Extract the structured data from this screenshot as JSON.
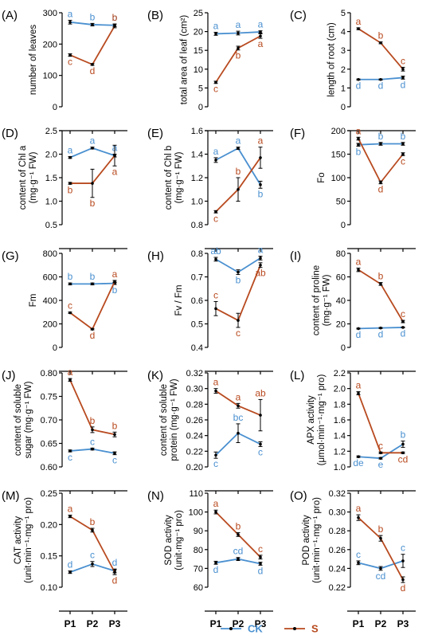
{
  "colors": {
    "CK": "#4a90d0",
    "S": "#b84a1f"
  },
  "x_categories": [
    "P1",
    "P2",
    "P3"
  ],
  "legend": [
    {
      "name": "CK",
      "color": "#4a90d0"
    },
    {
      "name": "S",
      "color": "#b84a1f"
    }
  ],
  "chart_data": [
    {
      "type": "line",
      "title": "(A)",
      "ylabel": [
        "number of leaves"
      ],
      "ylim": [
        0,
        300
      ],
      "yticks": [
        "0",
        "100",
        "200",
        "300"
      ],
      "categories": [
        "P1",
        "P2",
        "P3"
      ],
      "series": [
        {
          "name": "CK",
          "values": [
            270,
            262,
            260
          ],
          "err": [
            6,
            4,
            4
          ],
          "letters": [
            "a",
            "b",
            "b"
          ]
        },
        {
          "name": "S",
          "values": [
            165,
            135,
            258
          ],
          "err": [
            4,
            3,
            6
          ],
          "letters": [
            "c",
            "d",
            "b"
          ]
        }
      ]
    },
    {
      "type": "line",
      "title": "(B)",
      "ylabel": [
        "total area of leaf (cm²)"
      ],
      "ylim": [
        0,
        25
      ],
      "yticks": [
        "0",
        "5",
        "10",
        "15",
        "20",
        "25"
      ],
      "categories": [
        "P1",
        "P2",
        "P3"
      ],
      "series": [
        {
          "name": "CK",
          "values": [
            19.4,
            19.6,
            19.9
          ],
          "err": [
            0.4,
            0.5,
            0.3
          ],
          "letters": [
            "a",
            "a",
            "a"
          ]
        },
        {
          "name": "S",
          "values": [
            6.5,
            15.6,
            18.8
          ],
          "err": [
            0.3,
            0.5,
            0.6
          ],
          "letters": [
            "c",
            "b",
            "a"
          ]
        }
      ]
    },
    {
      "type": "line",
      "title": "(C)",
      "ylabel": [
        "length of root (cm)"
      ],
      "ylim": [
        0,
        5
      ],
      "yticks": [
        "0",
        "1",
        "2",
        "3",
        "4",
        "5"
      ],
      "categories": [
        "P1",
        "P2",
        "P3"
      ],
      "series": [
        {
          "name": "CK",
          "values": [
            1.45,
            1.45,
            1.55
          ],
          "err": [
            0.03,
            0.03,
            0.08
          ],
          "letters": [
            "d",
            "d",
            "d"
          ]
        },
        {
          "name": "S",
          "values": [
            4.15,
            3.4,
            2.0
          ],
          "err": [
            0.05,
            0.05,
            0.1
          ],
          "letters": [
            "a",
            "b",
            "c"
          ]
        }
      ]
    },
    {
      "type": "line",
      "title": "(D)",
      "ylabel": [
        "content of Chl a",
        "(mg·g⁻¹ FW)"
      ],
      "ylim": [
        0.5,
        2.5
      ],
      "yticks": [
        "0.5",
        "1.0",
        "1.5",
        "2.0",
        "2.5"
      ],
      "categories": [
        "P1",
        "P2",
        "P3"
      ],
      "series": [
        {
          "name": "CK",
          "values": [
            1.93,
            2.13,
            1.97
          ],
          "err": [
            0.02,
            0.02,
            0.03
          ],
          "letters": [
            "a",
            "a",
            "a"
          ]
        },
        {
          "name": "S",
          "values": [
            1.38,
            1.38,
            1.97
          ],
          "err": [
            0.02,
            0.3,
            0.22
          ],
          "letters": [
            "b",
            "b",
            "a"
          ]
        }
      ]
    },
    {
      "type": "line",
      "title": "(E)",
      "ylabel": [
        "content of Chl b",
        "(mg·g⁻¹ FW)"
      ],
      "ylim": [
        0.8,
        1.6
      ],
      "yticks": [
        "0.8",
        "1.0",
        "1.2",
        "1.4",
        "1.6"
      ],
      "categories": [
        "P1",
        "P2",
        "P3"
      ],
      "series": [
        {
          "name": "CK",
          "values": [
            1.35,
            1.45,
            1.14
          ],
          "err": [
            0.02,
            0.01,
            0.03
          ],
          "letters": [
            "a",
            "a",
            "b"
          ]
        },
        {
          "name": "S",
          "values": [
            0.91,
            1.1,
            1.37
          ],
          "err": [
            0.01,
            0.1,
            0.09
          ],
          "letters": [
            "c",
            "b",
            "a"
          ]
        }
      ]
    },
    {
      "type": "line",
      "title": "(F)",
      "ylabel": [
        "Fo"
      ],
      "ylim": [
        0,
        200
      ],
      "yticks": [
        "0",
        "50",
        "100",
        "150",
        "200"
      ],
      "categories": [
        "P1",
        "P2",
        "P3"
      ],
      "series": [
        {
          "name": "CK",
          "values": [
            170,
            172,
            172
          ],
          "err": [
            3,
            3,
            3
          ],
          "letters": [
            "b",
            "b",
            "b"
          ]
        },
        {
          "name": "S",
          "values": [
            183,
            90,
            150
          ],
          "err": [
            3,
            3,
            3
          ],
          "letters": [
            "a",
            "d",
            "c"
          ]
        }
      ]
    },
    {
      "type": "line",
      "title": "(G)",
      "ylabel": [
        "Fm"
      ],
      "ylim": [
        0,
        800
      ],
      "yticks": [
        "0",
        "200",
        "400",
        "600",
        "800"
      ],
      "categories": [
        "P1",
        "P2",
        "P3"
      ],
      "series": [
        {
          "name": "CK",
          "values": [
            540,
            540,
            545
          ],
          "err": [
            8,
            8,
            10
          ],
          "letters": [
            "b",
            "b",
            "b"
          ]
        },
        {
          "name": "S",
          "values": [
            295,
            155,
            560
          ],
          "err": [
            6,
            6,
            10
          ],
          "letters": [
            "c",
            "d",
            "a"
          ]
        }
      ]
    },
    {
      "type": "line",
      "title": "(H)",
      "ylabel": [
        "Fv / Fm"
      ],
      "ylim": [
        0.4,
        0.8
      ],
      "yticks": [
        "0.4",
        "0.5",
        "0.6",
        "0.7",
        "0.8"
      ],
      "categories": [
        "P1",
        "P2",
        "P3"
      ],
      "series": [
        {
          "name": "CK",
          "values": [
            0.775,
            0.72,
            0.78
          ],
          "err": [
            0.008,
            0.01,
            0.008
          ],
          "letters": [
            "ab",
            "b",
            "a"
          ]
        },
        {
          "name": "S",
          "values": [
            0.565,
            0.515,
            0.75
          ],
          "err": [
            0.03,
            0.03,
            0.01
          ],
          "letters": [
            "c",
            "c",
            "ab"
          ]
        }
      ]
    },
    {
      "type": "line",
      "title": "(I)",
      "ylabel": [
        "content of proline",
        "(mg·g⁻¹ FW)"
      ],
      "ylim": [
        0,
        80
      ],
      "yticks": [
        "0",
        "20",
        "40",
        "60",
        "80"
      ],
      "categories": [
        "P1",
        "P2",
        "P3"
      ],
      "series": [
        {
          "name": "CK",
          "values": [
            16,
            16.5,
            17
          ],
          "err": [
            0.4,
            0.4,
            0.4
          ],
          "letters": [
            "d",
            "d",
            "d"
          ]
        },
        {
          "name": "S",
          "values": [
            66,
            54,
            22
          ],
          "err": [
            1.5,
            1.2,
            1.0
          ],
          "letters": [
            "a",
            "b",
            "c"
          ]
        }
      ]
    },
    {
      "type": "line",
      "title": "(J)",
      "ylabel": [
        "content of soluble",
        "sugar (mg·g⁻¹ FW)"
      ],
      "ylim": [
        0.6,
        0.8
      ],
      "yticks": [
        "0.60",
        "0.65",
        "0.70",
        "0.75",
        "0.80"
      ],
      "categories": [
        "P1",
        "P2",
        "P3"
      ],
      "series": [
        {
          "name": "CK",
          "values": [
            0.634,
            0.638,
            0.629
          ],
          "err": [
            0.002,
            0.002,
            0.003
          ],
          "letters": [
            "c",
            "c",
            "c"
          ]
        },
        {
          "name": "S",
          "values": [
            0.785,
            0.679,
            0.669
          ],
          "err": [
            0.003,
            0.006,
            0.005
          ],
          "letters": [
            "a",
            "b",
            "b"
          ]
        }
      ]
    },
    {
      "type": "line",
      "title": "(K)",
      "ylabel": [
        "content of soluble",
        "protein (mg·g⁻¹ FW)"
      ],
      "ylim": [
        0.2,
        0.32
      ],
      "yticks": [
        "0.20",
        "0.22",
        "0.24",
        "0.26",
        "0.28",
        "0.30",
        "0.32"
      ],
      "categories": [
        "P1",
        "P2",
        "P3"
      ],
      "series": [
        {
          "name": "CK",
          "values": [
            0.215,
            0.243,
            0.229
          ],
          "err": [
            0.004,
            0.012,
            0.003
          ],
          "letters": [
            "c",
            "bc",
            "c"
          ]
        },
        {
          "name": "S",
          "values": [
            0.297,
            0.278,
            0.266
          ],
          "err": [
            0.003,
            0.003,
            0.02
          ],
          "letters": [
            "a",
            "a",
            "ab"
          ]
        }
      ]
    },
    {
      "type": "line",
      "title": "(L)",
      "ylabel": [
        "APX activity",
        "(μmol·min⁻¹·mg⁻¹ pro)"
      ],
      "ylim": [
        1.0,
        2.2
      ],
      "yticks": [
        "1.0",
        "1.2",
        "1.4",
        "1.6",
        "1.8",
        "2.0",
        "2.2"
      ],
      "categories": [
        "P1",
        "P2",
        "P3"
      ],
      "series": [
        {
          "name": "CK",
          "values": [
            1.13,
            1.11,
            1.29
          ],
          "err": [
            0.01,
            0.01,
            0.04
          ],
          "letters": [
            "de",
            "e",
            "b"
          ]
        },
        {
          "name": "S",
          "values": [
            1.94,
            1.18,
            1.18
          ],
          "err": [
            0.02,
            0.01,
            0.01
          ],
          "letters": [
            "a",
            "c",
            "cd"
          ]
        }
      ]
    },
    {
      "type": "line",
      "title": "(M)",
      "ylabel": [
        "CAT activity",
        "(unit·min⁻¹·mg⁻¹ pro)"
      ],
      "ylim": [
        0.1,
        0.25
      ],
      "yticks": [
        "0.10",
        "0.15",
        "0.20",
        "0.25"
      ],
      "categories": [
        "P1",
        "P2",
        "P3"
      ],
      "series": [
        {
          "name": "CK",
          "values": [
            0.124,
            0.137,
            0.126
          ],
          "err": [
            0.002,
            0.004,
            0.003
          ],
          "letters": [
            "d",
            "c",
            "d"
          ]
        },
        {
          "name": "S",
          "values": [
            0.213,
            0.191,
            0.124
          ],
          "err": [
            0.002,
            0.003,
            0.004
          ],
          "letters": [
            "a",
            "b",
            "d"
          ]
        }
      ]
    },
    {
      "type": "line",
      "title": "(N)",
      "ylabel": [
        "SOD activity",
        "(unit·mg⁻¹ pro)"
      ],
      "ylim": [
        60,
        110
      ],
      "yticks": [
        "60",
        "70",
        "80",
        "90",
        "100",
        "110"
      ],
      "categories": [
        "P1",
        "P2",
        "P3"
      ],
      "series": [
        {
          "name": "CK",
          "values": [
            73,
            75,
            72.5
          ],
          "err": [
            0.8,
            0.8,
            0.8
          ],
          "letters": [
            "d",
            "cd",
            "d"
          ]
        },
        {
          "name": "S",
          "values": [
            100,
            88,
            76
          ],
          "err": [
            1,
            1,
            1
          ],
          "letters": [
            "a",
            "b",
            "c"
          ]
        }
      ]
    },
    {
      "type": "line",
      "title": "(O)",
      "ylabel": [
        "POD activity",
        "(unit·min⁻¹·mg⁻¹ pro)"
      ],
      "ylim": [
        0.22,
        0.32
      ],
      "yticks": [
        "0.22",
        "0.24",
        "0.26",
        "0.28",
        "0.30",
        "0.32"
      ],
      "categories": [
        "P1",
        "P2",
        "P3"
      ],
      "series": [
        {
          "name": "CK",
          "values": [
            0.246,
            0.24,
            0.248
          ],
          "err": [
            0.002,
            0.002,
            0.007
          ],
          "letters": [
            "c",
            "cd",
            "c"
          ]
        },
        {
          "name": "S",
          "values": [
            0.294,
            0.272,
            0.228
          ],
          "err": [
            0.003,
            0.003,
            0.003
          ],
          "letters": [
            "a",
            "b",
            "d"
          ]
        }
      ]
    }
  ]
}
